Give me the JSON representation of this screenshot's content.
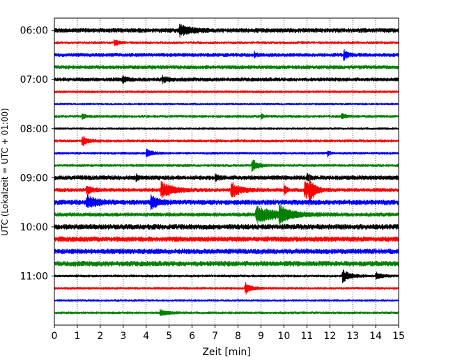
{
  "chart_data": {
    "type": "line",
    "title": "",
    "xlabel": "Zeit  [min]",
    "ylabel": "UTC (Lokalzeit = UTC + 01:00)",
    "xlim": [
      0,
      15
    ],
    "ylim": [
      "12:00",
      "05:45"
    ],
    "grid": {
      "x": true,
      "y": false
    },
    "x_ticks": [
      "0",
      "1",
      "2",
      "3",
      "4",
      "5",
      "6",
      "7",
      "8",
      "9",
      "10",
      "11",
      "12",
      "13",
      "14",
      "15"
    ],
    "y_ticks": [
      "06:00",
      "07:00",
      "08:00",
      "09:00",
      "10:00",
      "11:00"
    ],
    "trace_interval_min": 15,
    "colors": [
      "#000000",
      "#ff0000",
      "#0000ff",
      "#008000"
    ],
    "traces": [
      {
        "start": "06:00",
        "color": "#000000",
        "noise": 3.5,
        "events": [
          [
            5.45,
            9,
            0.5
          ]
        ]
      },
      {
        "start": "06:15",
        "color": "#ff0000",
        "noise": 2.0,
        "events": [
          [
            2.6,
            5,
            0.25
          ]
        ]
      },
      {
        "start": "06:30",
        "color": "#0000ff",
        "noise": 3.0,
        "events": [
          [
            8.7,
            4,
            0.1
          ],
          [
            12.6,
            8,
            0.2
          ]
        ]
      },
      {
        "start": "06:45",
        "color": "#008000",
        "noise": 3.0,
        "events": []
      },
      {
        "start": "07:00",
        "color": "#000000",
        "noise": 3.0,
        "events": [
          [
            2.95,
            6,
            0.2
          ],
          [
            4.7,
            5,
            0.3
          ]
        ]
      },
      {
        "start": "07:15",
        "color": "#ff0000",
        "noise": 2.0,
        "events": []
      },
      {
        "start": "07:30",
        "color": "#0000ff",
        "noise": 1.8,
        "events": []
      },
      {
        "start": "07:45",
        "color": "#008000",
        "noise": 2.2,
        "events": [
          [
            1.2,
            4,
            0.2
          ],
          [
            9.0,
            4,
            0.15
          ],
          [
            12.5,
            5,
            0.2
          ]
        ]
      },
      {
        "start": "08:00",
        "color": "#000000",
        "noise": 1.8,
        "events": []
      },
      {
        "start": "08:15",
        "color": "#ff0000",
        "noise": 2.2,
        "events": [
          [
            1.2,
            8,
            0.3
          ]
        ]
      },
      {
        "start": "08:30",
        "color": "#0000ff",
        "noise": 2.0,
        "events": [
          [
            4.0,
            6,
            0.35
          ],
          [
            11.9,
            6,
            0.1
          ]
        ]
      },
      {
        "start": "08:45",
        "color": "#008000",
        "noise": 2.2,
        "events": [
          [
            8.6,
            10,
            0.3
          ]
        ]
      },
      {
        "start": "09:00",
        "color": "#000000",
        "noise": 3.5,
        "events": [
          [
            3.55,
            6,
            0.1
          ],
          [
            7.0,
            5,
            0.15
          ],
          [
            11.0,
            5,
            0.15
          ]
        ]
      },
      {
        "start": "09:15",
        "color": "#ff0000",
        "noise": 3.0,
        "events": [
          [
            1.4,
            6,
            0.3
          ],
          [
            4.65,
            12,
            0.6
          ],
          [
            7.7,
            11,
            0.5
          ],
          [
            10.0,
            14,
            0.1
          ],
          [
            10.9,
            14,
            0.4
          ],
          [
            11.1,
            18,
            0.2
          ]
        ]
      },
      {
        "start": "09:30",
        "color": "#0000ff",
        "noise": 4.0,
        "events": [
          [
            1.4,
            9,
            0.5
          ],
          [
            4.2,
            10,
            0.4
          ]
        ]
      },
      {
        "start": "09:45",
        "color": "#008000",
        "noise": 3.0,
        "events": [
          [
            8.8,
            12,
            1.2
          ],
          [
            9.8,
            12,
            0.5
          ]
        ]
      },
      {
        "start": "10:00",
        "color": "#000000",
        "noise": 4.0,
        "events": []
      },
      {
        "start": "10:15",
        "color": "#ff0000",
        "noise": 4.0,
        "events": []
      },
      {
        "start": "10:30",
        "color": "#0000ff",
        "noise": 4.0,
        "events": []
      },
      {
        "start": "10:45",
        "color": "#008000",
        "noise": 4.0,
        "events": []
      },
      {
        "start": "11:00",
        "color": "#000000",
        "noise": 2.0,
        "events": [
          [
            12.55,
            10,
            0.4
          ],
          [
            14.0,
            6,
            0.3
          ]
        ]
      },
      {
        "start": "11:15",
        "color": "#ff0000",
        "noise": 2.0,
        "events": [
          [
            8.3,
            10,
            0.3
          ]
        ]
      },
      {
        "start": "11:30",
        "color": "#0000ff",
        "noise": 1.8,
        "events": []
      },
      {
        "start": "11:45",
        "color": "#008000",
        "noise": 2.0,
        "events": [
          [
            4.6,
            5,
            0.4
          ]
        ]
      }
    ]
  }
}
